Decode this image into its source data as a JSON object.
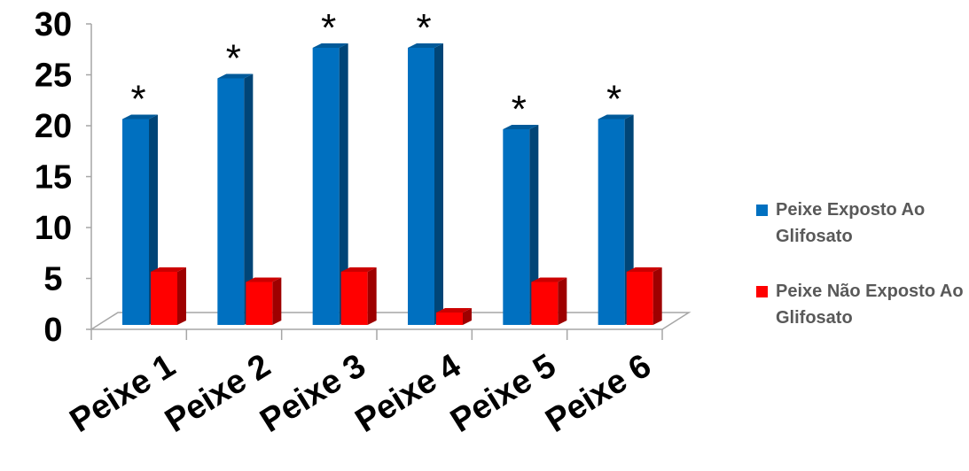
{
  "chart_data": {
    "type": "bar",
    "categories": [
      "Peixe 1",
      "Peixe 2",
      "Peixe 3",
      "Peixe 4",
      "Peixe 5",
      "Peixe 6"
    ],
    "series": [
      {
        "name": "Peixe Exposto Ao Glifosato",
        "values": [
          19,
          23,
          26,
          26,
          18,
          19
        ],
        "color": "#0070C0"
      },
      {
        "name": "Peixe Não Exposto Ao Glifosato",
        "values": [
          4,
          3,
          4,
          0,
          3,
          4
        ],
        "color": "#FF0000"
      }
    ],
    "annotations": [
      "*",
      "*",
      "*",
      "*",
      "*",
      "*"
    ],
    "yticks": [
      "0",
      "5",
      "10",
      "15",
      "20",
      "25",
      "30"
    ],
    "ylim": [
      0,
      30
    ],
    "legend_position": "right",
    "grid": false,
    "style": "3d-clustered-column"
  }
}
